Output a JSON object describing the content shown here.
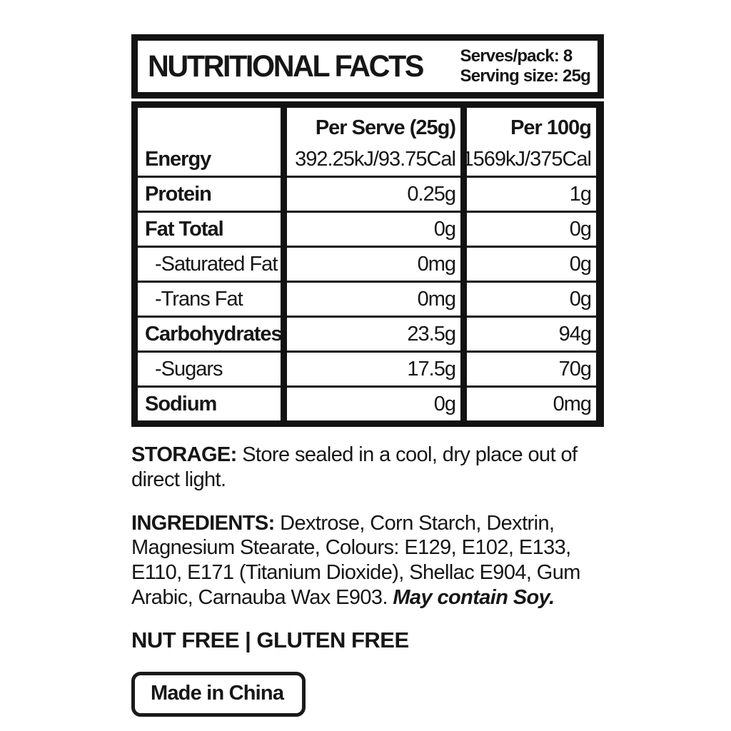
{
  "header": {
    "title": "NUTRITIONAL FACTS",
    "serves_per_pack": "Serves/pack: 8",
    "serving_size": "Serving size: 25g"
  },
  "table": {
    "col_headers": {
      "nutrient": "",
      "per_serve": "Per Serve (25g)",
      "per_100g": "Per 100g"
    },
    "rows": [
      {
        "label": "Energy",
        "per_serve": "392.25kJ/93.75Cal",
        "per_100g": "1569kJ/375Cal"
      },
      {
        "label": "Protein",
        "per_serve": "0.25g",
        "per_100g": "1g"
      },
      {
        "label": "Fat Total",
        "per_serve": "0g",
        "per_100g": "0g"
      },
      {
        "label": "-Saturated Fat",
        "per_serve": "0mg",
        "per_100g": "0g"
      },
      {
        "label": "-Trans Fat",
        "per_serve": "0mg",
        "per_100g": "0g"
      },
      {
        "label": "Carbohydrates",
        "per_serve": "23.5g",
        "per_100g": "94g"
      },
      {
        "label": "-Sugars",
        "per_serve": "17.5g",
        "per_100g": "70g"
      },
      {
        "label": "Sodium",
        "per_serve": "0g",
        "per_100g": "0mg"
      }
    ]
  },
  "storage": {
    "label": "STORAGE:",
    "text": " Store sealed in a cool, dry place out of direct light."
  },
  "ingredients": {
    "label": "INGREDIENTS:",
    "text": " Dextrose, Corn Starch, Dextrin, Magnesium Stearate, Colours: E129, E102, E133, E110, E171 (Titanium Dioxide), Shellac E904, Gum Arabic, Carnauba Wax E903. ",
    "allergen": "May contain Soy."
  },
  "diet_claims": "NUT FREE | GLUTEN FREE",
  "origin": "Made in China",
  "colors": {
    "ink": "#161616",
    "border": "#121212",
    "background": "#ffffff"
  }
}
